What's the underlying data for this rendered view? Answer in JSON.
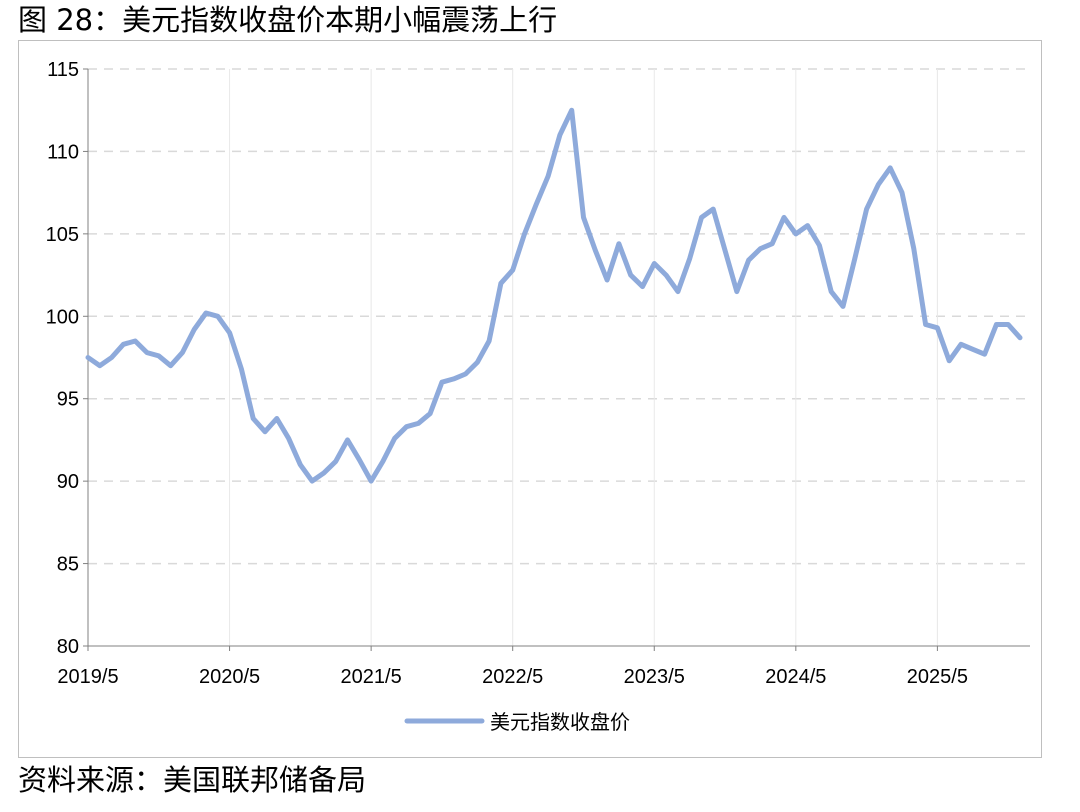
{
  "figure": {
    "title": "图 28：美元指数收盘价本期小幅震荡上行",
    "source": "资料来源：美国联邦储备局"
  },
  "colors": {
    "series": "#8eaadb",
    "gridline": "#d9d9d9",
    "axis": "#808080",
    "border": "#bfbfbf"
  },
  "chart_data": {
    "type": "line",
    "title": "",
    "xlabel": "",
    "ylabel": "",
    "ylim": [
      80,
      115
    ],
    "yticks": [
      "80",
      "85",
      "90",
      "95",
      "100",
      "105",
      "110",
      "115"
    ],
    "xlim": [
      "2019-05",
      "2025-12"
    ],
    "xticks": [
      "2019/5",
      "2020/5",
      "2021/5",
      "2022/5",
      "2023/5",
      "2024/5",
      "2025/5"
    ],
    "grid": "horizontal dashed",
    "legend_position": "bottom-center",
    "series": [
      {
        "name": "美元指数收盘价",
        "x": [
          "2019-05",
          "2019-06",
          "2019-07",
          "2019-08",
          "2019-09",
          "2019-10",
          "2019-11",
          "2019-12",
          "2020-01",
          "2020-02",
          "2020-03",
          "2020-04",
          "2020-05",
          "2020-06",
          "2020-07",
          "2020-08",
          "2020-09",
          "2020-10",
          "2020-11",
          "2020-12",
          "2021-01",
          "2021-02",
          "2021-03",
          "2021-04",
          "2021-05",
          "2021-06",
          "2021-07",
          "2021-08",
          "2021-09",
          "2021-10",
          "2021-11",
          "2021-12",
          "2022-01",
          "2022-02",
          "2022-03",
          "2022-04",
          "2022-05",
          "2022-06",
          "2022-07",
          "2022-08",
          "2022-09",
          "2022-10",
          "2022-11",
          "2022-12",
          "2023-01",
          "2023-02",
          "2023-03",
          "2023-04",
          "2023-05",
          "2023-06",
          "2023-07",
          "2023-08",
          "2023-09",
          "2023-10",
          "2023-11",
          "2023-12",
          "2024-01",
          "2024-02",
          "2024-03",
          "2024-04",
          "2024-05",
          "2024-06",
          "2024-07",
          "2024-08",
          "2024-09",
          "2024-10",
          "2024-11",
          "2024-12",
          "2025-01",
          "2025-02",
          "2025-03",
          "2025-04",
          "2025-05",
          "2025-06",
          "2025-07",
          "2025-08",
          "2025-09",
          "2025-10",
          "2025-11",
          "2025-12"
        ],
        "values": [
          97.5,
          97.0,
          97.5,
          98.3,
          98.5,
          97.8,
          97.6,
          97.0,
          97.8,
          99.2,
          100.2,
          100.0,
          99.0,
          96.8,
          93.8,
          93.0,
          93.8,
          92.6,
          91.0,
          90.0,
          90.5,
          91.2,
          92.5,
          91.3,
          90.0,
          91.2,
          92.6,
          93.3,
          93.5,
          94.1,
          96.0,
          96.2,
          96.5,
          97.2,
          98.5,
          102.0,
          102.8,
          105.0,
          106.8,
          108.5,
          111.0,
          112.5,
          106.0,
          104.0,
          102.2,
          104.4,
          102.5,
          101.8,
          103.2,
          102.5,
          101.5,
          103.5,
          106.0,
          106.5,
          104.0,
          101.5,
          103.4,
          104.1,
          104.4,
          106.0,
          105.0,
          105.5,
          104.3,
          101.5,
          100.6,
          103.5,
          106.5,
          108.0,
          109.0,
          107.5,
          104.1,
          99.5,
          99.3,
          97.3,
          98.3,
          98.0,
          97.7,
          99.5,
          99.5,
          98.7
        ]
      }
    ]
  },
  "legend": {
    "label": "美元指数收盘价"
  }
}
